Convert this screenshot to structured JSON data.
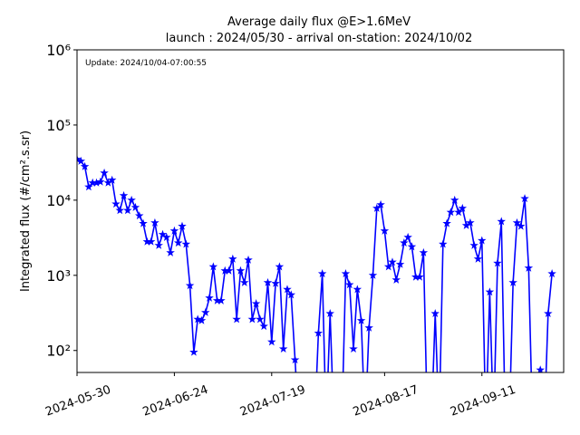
{
  "chart_data": {
    "type": "line",
    "title": "Average daily flux @E>1.6MeV",
    "subtitle": "launch : 2024/05/30 - arrival on-station: 2024/10/02",
    "annotation": "Update: 2024/10/04-07:00:55",
    "y_label": "Integrated flux (#/cm².s.sr)",
    "log_y": true,
    "marker": "star",
    "x": [
      "2024-05-30",
      "2024-05-31",
      "2024-06-01",
      "2024-06-02",
      "2024-06-03",
      "2024-06-04",
      "2024-06-05",
      "2024-06-06",
      "2024-06-07",
      "2024-06-08",
      "2024-06-09",
      "2024-06-10",
      "2024-06-11",
      "2024-06-12",
      "2024-06-13",
      "2024-06-14",
      "2024-06-15",
      "2024-06-16",
      "2024-06-17",
      "2024-06-18",
      "2024-06-19",
      "2024-06-20",
      "2024-06-21",
      "2024-06-22",
      "2024-06-23",
      "2024-06-24",
      "2024-06-25",
      "2024-06-26",
      "2024-06-27",
      "2024-06-28",
      "2024-06-29",
      "2024-06-30",
      "2024-07-01",
      "2024-07-02",
      "2024-07-03",
      "2024-07-04",
      "2024-07-05",
      "2024-07-06",
      "2024-07-07",
      "2024-07-08",
      "2024-07-09",
      "2024-07-10",
      "2024-07-11",
      "2024-07-12",
      "2024-07-13",
      "2024-07-14",
      "2024-07-15",
      "2024-07-16",
      "2024-07-17",
      "2024-07-18",
      "2024-07-19",
      "2024-07-20",
      "2024-07-21",
      "2024-07-22",
      "2024-07-23",
      "2024-07-24",
      "2024-07-25",
      "2024-07-26",
      "2024-07-27",
      "2024-07-28",
      "2024-07-29",
      "2024-07-30",
      "2024-07-31",
      "2024-08-01",
      "2024-08-02",
      "2024-08-03",
      "2024-08-04",
      "2024-08-05",
      "2024-08-06",
      "2024-08-07",
      "2024-08-08",
      "2024-08-09",
      "2024-08-10",
      "2024-08-11",
      "2024-08-12",
      "2024-08-13",
      "2024-08-14",
      "2024-08-15",
      "2024-08-16",
      "2024-08-17",
      "2024-08-18",
      "2024-08-19",
      "2024-08-20",
      "2024-08-21",
      "2024-08-22",
      "2024-08-23",
      "2024-08-24",
      "2024-08-25",
      "2024-08-26",
      "2024-08-27",
      "2024-08-28",
      "2024-08-29",
      "2024-08-30",
      "2024-08-31",
      "2024-09-01",
      "2024-09-02",
      "2024-09-03",
      "2024-09-04",
      "2024-09-05",
      "2024-09-06",
      "2024-09-07",
      "2024-09-08",
      "2024-09-09",
      "2024-09-10",
      "2024-09-11",
      "2024-09-12",
      "2024-09-13",
      "2024-09-14",
      "2024-09-15",
      "2024-09-16",
      "2024-09-17",
      "2024-09-18",
      "2024-09-19",
      "2024-09-20",
      "2024-09-21",
      "2024-09-22",
      "2024-09-23",
      "2024-09-24",
      "2024-09-25",
      "2024-09-26",
      "2024-09-27",
      "2024-09-28",
      "2024-09-29"
    ],
    "series": [
      {
        "color": "#0000ff",
        "values": [
          35000,
          33000,
          28000,
          15000,
          17000,
          17000,
          17500,
          23000,
          17000,
          18500,
          8900,
          7300,
          11500,
          7300,
          10000,
          8000,
          6200,
          4900,
          2800,
          2800,
          5000,
          2500,
          3500,
          3200,
          2000,
          3900,
          2700,
          4500,
          2600,
          730,
          95,
          260,
          250,
          320,
          500,
          1300,
          460,
          460,
          1150,
          1150,
          1650,
          260,
          1150,
          800,
          1600,
          260,
          420,
          260,
          210,
          800,
          130,
          780,
          1300,
          105,
          650,
          550,
          75,
          0,
          0,
          0,
          0,
          0,
          170,
          1050,
          0,
          310,
          0,
          0,
          0,
          1050,
          750,
          105,
          650,
          250,
          0,
          200,
          1000,
          7800,
          8700,
          3900,
          1300,
          1500,
          870,
          1400,
          2700,
          3200,
          2400,
          950,
          950,
          2000,
          0,
          0,
          310,
          0,
          2600,
          4900,
          6900,
          10000,
          6900,
          7800,
          4600,
          5000,
          2500,
          1650,
          2900,
          0,
          600,
          0,
          1450,
          5200,
          0,
          0,
          800,
          5000,
          4500,
          10500,
          1250,
          0,
          0,
          55,
          0,
          310,
          1050
        ]
      }
    ],
    "xlim": [
      "2024-05-30",
      "2024-10-02"
    ],
    "xticks": [
      "2024-05-30",
      "2024-06-24",
      "2024-07-19",
      "2024-08-17",
      "2024-09-11"
    ],
    "ylim": [
      51,
      1000000
    ],
    "yticks": [
      {
        "value": 100,
        "label": "10²"
      },
      {
        "value": 1000,
        "label": "10³"
      },
      {
        "value": 10000,
        "label": "10⁴"
      },
      {
        "value": 100000,
        "label": "10⁵"
      },
      {
        "value": 1000000,
        "label": "10⁶"
      }
    ]
  }
}
